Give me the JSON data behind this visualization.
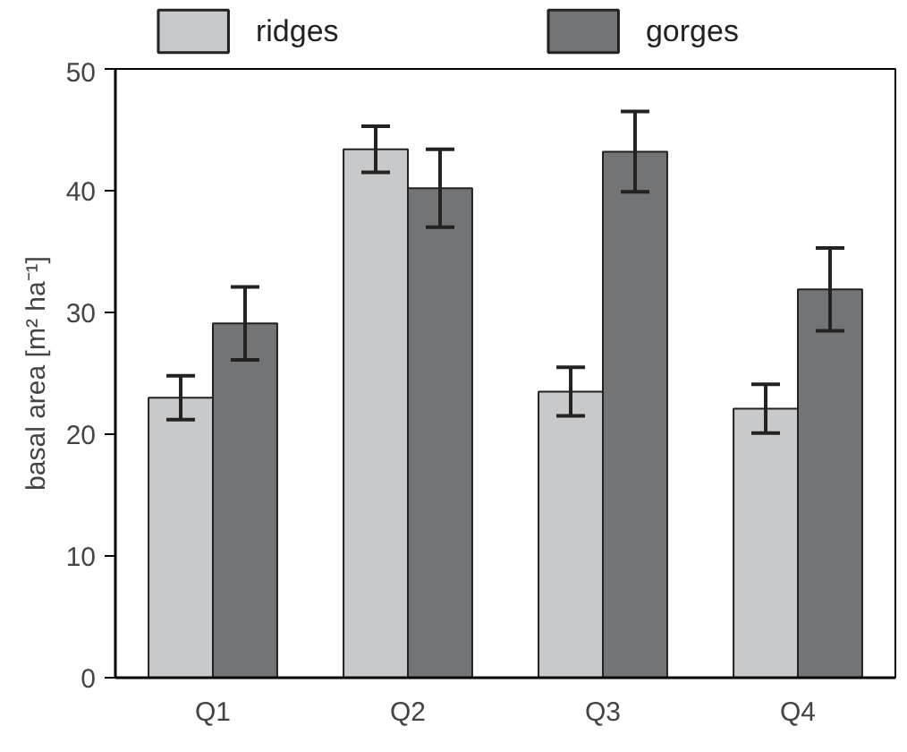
{
  "chart_data": {
    "type": "bar",
    "ylabel": "basal area [m² ha⁻¹]",
    "categories": [
      "Q1",
      "Q2",
      "Q3",
      "Q4"
    ],
    "series": [
      {
        "name": "ridges",
        "color": "#c8c9cb",
        "values": [
          23.0,
          43.4,
          23.5,
          22.1
        ],
        "errors": [
          1.8,
          1.9,
          2.0,
          2.0
        ]
      },
      {
        "name": "gorges",
        "color": "#737476",
        "values": [
          29.1,
          40.2,
          43.2,
          31.9
        ],
        "errors": [
          3.0,
          3.2,
          3.3,
          3.4
        ]
      }
    ],
    "ylim": [
      0,
      50
    ],
    "yticks": [
      0,
      10,
      20,
      30,
      40,
      50
    ],
    "grid": false,
    "legend": "top"
  }
}
